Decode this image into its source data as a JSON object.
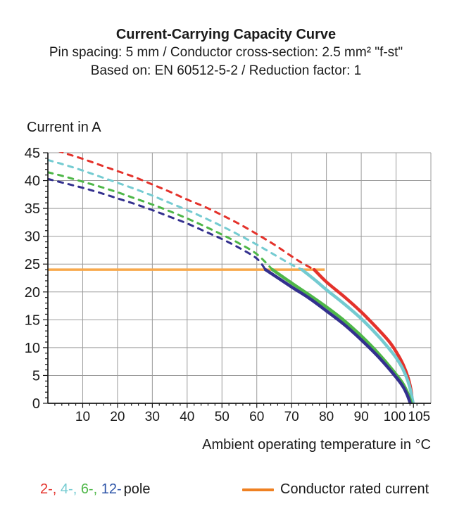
{
  "header": {
    "title": "Current-Carrying Capacity Curve",
    "subtitle1": "Pin spacing: 5 mm / Conductor cross-section: 2.5 mm² \"f-st\"",
    "subtitle2": "Based on: EN 60512-5-2 / Reduction factor: 1"
  },
  "chart_data": {
    "type": "line",
    "title": "Current-Carrying Capacity Curve",
    "xlabel": "Ambient operating temperature in °C",
    "ylabel": "Current in A",
    "xlim": [
      0,
      110
    ],
    "ylim": [
      0,
      45
    ],
    "grid": true,
    "x_gridlines": [
      10,
      20,
      30,
      40,
      50,
      60,
      70,
      80,
      90,
      100,
      110
    ],
    "y_gridlines": [
      5,
      10,
      15,
      20,
      25,
      30,
      35,
      40,
      45
    ],
    "x_major_ticks": [
      10,
      20,
      30,
      40,
      50,
      60,
      70,
      80,
      90,
      100,
      105
    ],
    "x_minor_step": 2,
    "y_major_ticks": [
      0,
      5,
      10,
      15,
      20,
      25,
      30,
      35,
      40,
      45
    ],
    "y_minor_step": 1,
    "grid_color": "#9b9b9b",
    "axis_color": "#1a1a1a",
    "rated_current": {
      "value": 24,
      "x_start": 0,
      "x_end": 79.5,
      "line_color": "#f8a94c",
      "legend_color": "#ef8122",
      "label": "Conductor rated current"
    },
    "series": [
      {
        "name": "2-pole",
        "color": "#e4322b",
        "dashed": [
          [
            0,
            46
          ],
          [
            5,
            44.9
          ],
          [
            10,
            43.9
          ],
          [
            15,
            42.8
          ],
          [
            20,
            41.7
          ],
          [
            25,
            40.6
          ],
          [
            30,
            39.3
          ],
          [
            35,
            38
          ],
          [
            40,
            36.6
          ],
          [
            45,
            35.3
          ],
          [
            50,
            33.8
          ],
          [
            55,
            32.2
          ],
          [
            60,
            30.4
          ],
          [
            65,
            28.5
          ],
          [
            70,
            26.4
          ],
          [
            73,
            25.2
          ],
          [
            76.5,
            24
          ]
        ],
        "solid": [
          [
            76.5,
            24
          ],
          [
            80,
            21.8
          ],
          [
            85,
            19.2
          ],
          [
            90,
            16.4
          ],
          [
            95,
            13.2
          ],
          [
            98,
            11.1
          ],
          [
            100,
            9.3
          ],
          [
            102,
            7
          ],
          [
            103.5,
            4.5
          ],
          [
            104.4,
            2
          ],
          [
            104.6,
            0
          ]
        ]
      },
      {
        "name": "4-pole",
        "color": "#74cbd1",
        "dashed": [
          [
            0,
            43.7
          ],
          [
            5,
            42.8
          ],
          [
            10,
            41.8
          ],
          [
            15,
            40.7
          ],
          [
            20,
            39.6
          ],
          [
            25,
            38.5
          ],
          [
            30,
            37.3
          ],
          [
            35,
            36
          ],
          [
            40,
            34.7
          ],
          [
            45,
            33.3
          ],
          [
            50,
            31.8
          ],
          [
            55,
            30.2
          ],
          [
            60,
            28.5
          ],
          [
            65,
            26.7
          ],
          [
            70,
            24.9
          ],
          [
            73,
            24
          ]
        ],
        "solid": [
          [
            73,
            24
          ],
          [
            77,
            22
          ],
          [
            80,
            20.4
          ],
          [
            85,
            17.9
          ],
          [
            90,
            15.2
          ],
          [
            95,
            12
          ],
          [
            98,
            9.8
          ],
          [
            100,
            8.2
          ],
          [
            102,
            6.1
          ],
          [
            103.8,
            3.2
          ],
          [
            104.9,
            0
          ]
        ]
      },
      {
        "name": "6-pole",
        "color": "#4eb748",
        "dashed": [
          [
            0,
            41.5
          ],
          [
            5,
            40.7
          ],
          [
            10,
            39.8
          ],
          [
            15,
            38.9
          ],
          [
            20,
            37.9
          ],
          [
            25,
            36.8
          ],
          [
            30,
            35.7
          ],
          [
            35,
            34.5
          ],
          [
            40,
            33.2
          ],
          [
            45,
            31.8
          ],
          [
            50,
            30.3
          ],
          [
            55,
            28.7
          ],
          [
            60,
            26.8
          ],
          [
            64.5,
            24
          ]
        ],
        "solid": [
          [
            64.5,
            24
          ],
          [
            70,
            21.6
          ],
          [
            75,
            19.5
          ],
          [
            80,
            17.3
          ],
          [
            85,
            14.9
          ],
          [
            90,
            12.1
          ],
          [
            95,
            8.9
          ],
          [
            100,
            5.2
          ],
          [
            102,
            3.5
          ],
          [
            103.5,
            1.6
          ],
          [
            104.4,
            0
          ]
        ]
      },
      {
        "name": "12-pole",
        "color": "#33308e",
        "dashed": [
          [
            0,
            40.3
          ],
          [
            5,
            39.5
          ],
          [
            10,
            38.7
          ],
          [
            15,
            37.8
          ],
          [
            20,
            36.8
          ],
          [
            25,
            35.8
          ],
          [
            30,
            34.7
          ],
          [
            35,
            33.5
          ],
          [
            40,
            32.3
          ],
          [
            45,
            30.9
          ],
          [
            50,
            29.5
          ],
          [
            55,
            27.9
          ],
          [
            60,
            26
          ],
          [
            62.5,
            24
          ]
        ],
        "solid": [
          [
            62.5,
            24
          ],
          [
            70,
            20.9
          ],
          [
            75,
            18.9
          ],
          [
            80,
            16.6
          ],
          [
            85,
            14.2
          ],
          [
            90,
            11.4
          ],
          [
            95,
            8.3
          ],
          [
            100,
            4.7
          ],
          [
            102,
            3
          ],
          [
            103.2,
            1.5
          ],
          [
            104.1,
            0
          ]
        ]
      }
    ]
  },
  "legend": {
    "pole_segments": [
      {
        "text": "2-, ",
        "color": "#e4322b"
      },
      {
        "text": "4-, ",
        "color": "#74cbd1"
      },
      {
        "text": "6-, ",
        "color": "#4eb748"
      },
      {
        "text": "12-",
        "color": "#2e55a8"
      },
      {
        "text": "pole",
        "color": "#1a1a1a"
      }
    ],
    "rated_label": "Conductor rated current"
  }
}
